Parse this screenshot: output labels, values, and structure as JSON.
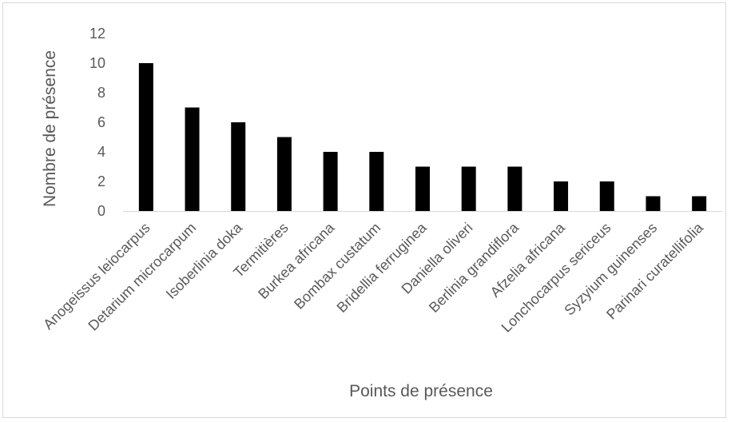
{
  "chart_data": {
    "type": "bar",
    "title": "",
    "xlabel": "Points de présence",
    "ylabel": "Nombre de présence",
    "categories": [
      "Anogeissus leiocarpus",
      "Detarium microcarpum",
      "Isoberlinia doka",
      "Termitières",
      "Burkea africana",
      "Bombax custatum",
      "Bridellia ferruginea",
      "Daniella oliveri",
      "Berlinia grandiflora",
      "Afzelia africana",
      "Lonchocarpus sericeus",
      "Syzyium guinenses",
      "Parinari curatellifolia"
    ],
    "values": [
      10,
      7,
      6,
      5,
      4,
      4,
      3,
      3,
      3,
      2,
      2,
      1,
      1
    ],
    "ylim": [
      0,
      12
    ],
    "yticks": [
      "0",
      "2",
      "4",
      "6",
      "8",
      "10",
      "12"
    ],
    "grid": false,
    "legend": "none",
    "bar_color": "#000000",
    "axis_color": "#d9d9d9",
    "text_color": "#595959"
  }
}
